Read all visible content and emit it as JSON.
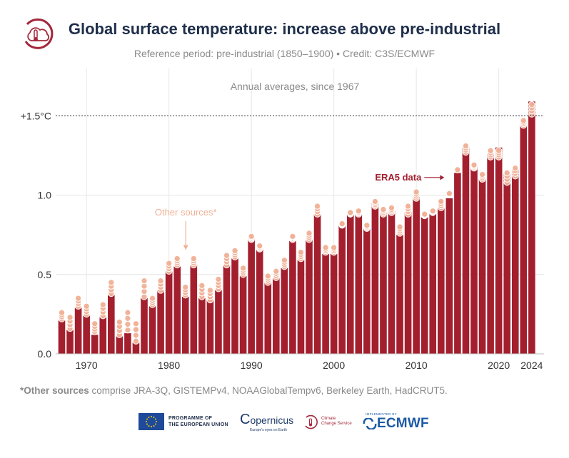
{
  "header": {
    "title": "Global surface temperature: increase above pre-industrial",
    "subtitle": "Reference period: pre-industrial (1850–1900) • Credit: C3S/ECMWF"
  },
  "footnote": {
    "bold": "*Other sources",
    "text": " comprise JRA-3Q, GISTEMPv4, NOAAGlobalTempv6, Berkeley Earth, HadCRUT5."
  },
  "footer": {
    "eu_line1": "PROGRAMME OF",
    "eu_line2": "THE EUROPEAN UNION",
    "copernicus": "opernicus",
    "copernicus_c": "C",
    "copernicus_sub": "Europe's eyes on Earth",
    "c3s_line1": "Climate",
    "c3s_line2": "Change Service",
    "ecmwf_small": "IMPLEMENTED BY",
    "ecmwf": "ECMWF"
  },
  "colors": {
    "bar": "#a31f2e",
    "other_sources": "#f1b196",
    "title": "#1f2f4a",
    "threshold_line": "#333333"
  },
  "chart_data": {
    "type": "bar",
    "inner_title": "Annual averages, since 1967",
    "xlabel": "",
    "ylabel": "",
    "ylim": [
      0,
      1.7
    ],
    "y_ticks": [
      {
        "value": 0.0,
        "label": "0.0"
      },
      {
        "value": 0.5,
        "label": "0.5"
      },
      {
        "value": 1.0,
        "label": "1.0"
      },
      {
        "value": 1.5,
        "label": "+1.5°C"
      }
    ],
    "x_ticks": [
      {
        "value": 1970,
        "label": "1970"
      },
      {
        "value": 1980,
        "label": "1980"
      },
      {
        "value": 1990,
        "label": "1990"
      },
      {
        "value": 2000,
        "label": "2000"
      },
      {
        "value": 2010,
        "label": "2010"
      },
      {
        "value": 2020,
        "label": "2020"
      },
      {
        "value": 2024,
        "label": "2024"
      }
    ],
    "threshold": 1.5,
    "grid": true,
    "annotations": {
      "era5": "ERA5 data",
      "era5_year": 2014,
      "era5_value": 1.03,
      "other": "Other sources*",
      "other_year": 1981,
      "other_value": 0.6
    },
    "series": [
      {
        "name": "ERA5 data",
        "x": [
          1967,
          1968,
          1969,
          1970,
          1971,
          1972,
          1973,
          1974,
          1975,
          1976,
          1977,
          1978,
          1979,
          1980,
          1981,
          1982,
          1983,
          1984,
          1985,
          1986,
          1987,
          1988,
          1989,
          1990,
          1991,
          1992,
          1993,
          1994,
          1995,
          1996,
          1997,
          1998,
          1999,
          2000,
          2001,
          2002,
          2003,
          2004,
          2005,
          2006,
          2007,
          2008,
          2009,
          2010,
          2011,
          2012,
          2013,
          2014,
          2015,
          2016,
          2017,
          2018,
          2019,
          2020,
          2021,
          2022,
          2023,
          2024
        ],
        "values": [
          0.21,
          0.15,
          0.29,
          0.24,
          0.12,
          0.23,
          0.37,
          0.11,
          0.13,
          0.07,
          0.35,
          0.3,
          0.4,
          0.52,
          0.55,
          0.36,
          0.56,
          0.35,
          0.34,
          0.4,
          0.56,
          0.6,
          0.49,
          0.73,
          0.67,
          0.45,
          0.48,
          0.54,
          0.71,
          0.59,
          0.72,
          0.88,
          0.63,
          0.63,
          0.81,
          0.88,
          0.88,
          0.79,
          0.95,
          0.89,
          0.9,
          0.75,
          0.89,
          0.99,
          0.86,
          0.88,
          0.92,
          0.98,
          1.14,
          1.3,
          1.18,
          1.1,
          1.26,
          1.3,
          1.13,
          1.16,
          1.47,
          1.59
        ]
      },
      {
        "name": "Other sources*",
        "x": [
          1967,
          1968,
          1969,
          1970,
          1971,
          1972,
          1973,
          1974,
          1975,
          1976,
          1977,
          1978,
          1979,
          1980,
          1981,
          1982,
          1983,
          1984,
          1985,
          1986,
          1987,
          1988,
          1989,
          1990,
          1991,
          1992,
          1993,
          1994,
          1995,
          1996,
          1997,
          1998,
          1999,
          2000,
          2001,
          2002,
          2003,
          2004,
          2005,
          2006,
          2007,
          2008,
          2009,
          2010,
          2011,
          2012,
          2013,
          2014,
          2015,
          2016,
          2017,
          2018,
          2019,
          2020,
          2021,
          2022,
          2023,
          2024
        ],
        "low": [
          0.22,
          0.16,
          0.3,
          0.25,
          0.14,
          0.24,
          0.38,
          0.12,
          0.15,
          0.08,
          0.36,
          0.31,
          0.4,
          0.52,
          0.56,
          0.37,
          0.56,
          0.36,
          0.34,
          0.41,
          0.56,
          0.61,
          0.5,
          0.72,
          0.66,
          0.45,
          0.48,
          0.55,
          0.72,
          0.6,
          0.72,
          0.88,
          0.64,
          0.64,
          0.81,
          0.88,
          0.88,
          0.79,
          0.93,
          0.88,
          0.89,
          0.76,
          0.88,
          0.98,
          0.87,
          0.89,
          0.92,
          1.01,
          1.16,
          1.27,
          1.17,
          1.1,
          1.24,
          1.24,
          1.08,
          1.12,
          1.44,
          1.51
        ],
        "high": [
          0.26,
          0.23,
          0.35,
          0.3,
          0.19,
          0.31,
          0.45,
          0.2,
          0.26,
          0.19,
          0.46,
          0.35,
          0.46,
          0.57,
          0.6,
          0.42,
          0.6,
          0.43,
          0.4,
          0.47,
          0.62,
          0.65,
          0.54,
          0.74,
          0.68,
          0.49,
          0.52,
          0.59,
          0.74,
          0.64,
          0.76,
          0.93,
          0.67,
          0.67,
          0.82,
          0.89,
          0.9,
          0.81,
          0.96,
          0.91,
          0.92,
          0.8,
          0.93,
          1.02,
          0.88,
          0.9,
          0.96,
          1.01,
          1.16,
          1.31,
          1.19,
          1.13,
          1.28,
          1.28,
          1.14,
          1.17,
          1.47,
          1.57
        ]
      }
    ]
  }
}
